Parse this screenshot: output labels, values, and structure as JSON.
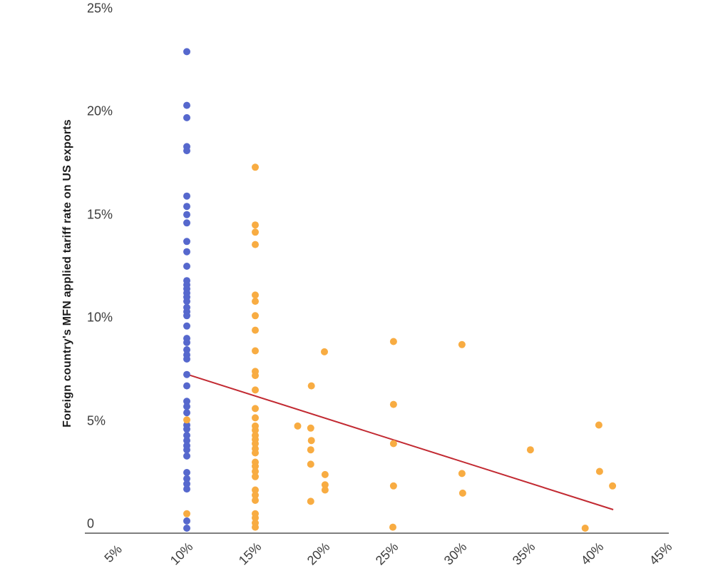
{
  "page": {
    "background_color": "#ffffff"
  },
  "chart_data": {
    "type": "scatter",
    "title": "",
    "xlabel": "",
    "ylabel": "Foreign country's MFN applied tariff rate on US exports",
    "xlim": [
      2.5,
      45.5
    ],
    "ylim": [
      0,
      25.5
    ],
    "grid": false,
    "legend": "none",
    "x_ticks": [
      {
        "value": 5,
        "label": "5%"
      },
      {
        "value": 10,
        "label": "10%"
      },
      {
        "value": 15,
        "label": "15%"
      },
      {
        "value": 20,
        "label": "20%"
      },
      {
        "value": 25,
        "label": "25%"
      },
      {
        "value": 30,
        "label": "30%"
      },
      {
        "value": 35,
        "label": "35%"
      },
      {
        "value": 40,
        "label": "40%"
      },
      {
        "value": 45,
        "label": "45%"
      }
    ],
    "y_ticks": [
      {
        "value": 0,
        "label": "0"
      },
      {
        "value": 5,
        "label": "5%"
      },
      {
        "value": 10,
        "label": "10%"
      },
      {
        "value": 15,
        "label": "15%"
      },
      {
        "value": 20,
        "label": "20%"
      },
      {
        "value": 25,
        "label": "25%"
      }
    ],
    "series": [
      {
        "name": "blue-points",
        "color": "#5668CD",
        "points": [
          [
            10,
            23.1
          ],
          [
            10,
            20.5
          ],
          [
            10,
            19.9
          ],
          [
            10,
            18.5
          ],
          [
            10,
            18.3
          ],
          [
            10,
            16.1
          ],
          [
            10,
            15.6
          ],
          [
            10,
            15.2
          ],
          [
            10,
            14.8
          ],
          [
            10,
            13.9
          ],
          [
            10,
            13.4
          ],
          [
            10,
            12.7
          ],
          [
            10,
            12.0
          ],
          [
            10,
            11.8
          ],
          [
            10,
            11.6
          ],
          [
            10,
            11.4
          ],
          [
            10,
            11.2
          ],
          [
            10,
            11.0
          ],
          [
            10,
            10.7
          ],
          [
            10,
            10.5
          ],
          [
            10,
            10.3
          ],
          [
            10,
            9.8
          ],
          [
            10,
            9.2
          ],
          [
            10,
            9.0
          ],
          [
            10,
            8.65
          ],
          [
            10,
            8.4
          ],
          [
            10,
            8.2
          ],
          [
            10,
            7.45
          ],
          [
            10,
            6.9
          ],
          [
            10,
            6.15
          ],
          [
            10,
            5.9
          ],
          [
            10,
            5.6
          ],
          [
            10,
            5.0
          ],
          [
            10,
            4.8
          ],
          [
            10,
            4.5
          ],
          [
            10,
            4.25
          ],
          [
            10,
            4.0
          ],
          [
            10,
            3.8
          ],
          [
            10,
            3.5
          ],
          [
            10,
            2.7
          ],
          [
            10,
            2.4
          ],
          [
            10,
            2.15
          ],
          [
            10,
            1.9
          ],
          [
            10,
            0.35
          ],
          [
            10,
            0.0
          ]
        ]
      },
      {
        "name": "orange-points",
        "color": "#F8AC42",
        "points": [
          [
            10,
            5.25
          ],
          [
            10,
            0.7
          ],
          [
            15,
            17.5
          ],
          [
            15,
            14.7
          ],
          [
            15,
            14.35
          ],
          [
            15,
            13.75
          ],
          [
            15,
            11.3
          ],
          [
            15,
            11.0
          ],
          [
            15,
            10.3
          ],
          [
            15,
            9.6
          ],
          [
            15,
            8.6
          ],
          [
            15,
            7.6
          ],
          [
            15,
            7.4
          ],
          [
            15,
            6.7
          ],
          [
            15,
            5.8
          ],
          [
            15,
            5.35
          ],
          [
            15,
            4.95
          ],
          [
            15,
            4.75
          ],
          [
            15,
            4.5
          ],
          [
            15,
            4.3
          ],
          [
            15,
            4.1
          ],
          [
            15,
            3.85
          ],
          [
            15,
            3.65
          ],
          [
            15,
            3.2
          ],
          [
            15,
            3.0
          ],
          [
            15,
            2.75
          ],
          [
            15,
            2.5
          ],
          [
            15,
            1.85
          ],
          [
            15,
            1.6
          ],
          [
            15,
            1.35
          ],
          [
            15,
            0.7
          ],
          [
            15,
            0.5
          ],
          [
            15,
            0.25
          ],
          [
            15,
            0.05
          ],
          [
            18.1,
            4.95
          ],
          [
            19.05,
            4.85
          ],
          [
            19.1,
            4.25
          ],
          [
            19.05,
            3.8
          ],
          [
            19.05,
            3.1
          ],
          [
            19.1,
            6.9
          ],
          [
            19.05,
            1.3
          ],
          [
            20.05,
            8.55
          ],
          [
            20.1,
            2.6
          ],
          [
            20.1,
            2.1
          ],
          [
            20.1,
            1.85
          ],
          [
            25.1,
            9.05
          ],
          [
            25.1,
            6.0
          ],
          [
            25.1,
            4.1
          ],
          [
            25.1,
            2.05
          ],
          [
            25.05,
            0.05
          ],
          [
            30.1,
            8.9
          ],
          [
            30.1,
            2.65
          ],
          [
            30.15,
            1.7
          ],
          [
            35.1,
            3.8
          ],
          [
            39.1,
            0.0
          ],
          [
            40.1,
            5.0
          ],
          [
            40.15,
            2.75
          ],
          [
            41.1,
            2.05
          ]
        ]
      }
    ],
    "trend_line": {
      "name": "fitted-trend-line",
      "color": "#C22A32",
      "x1": 10.1,
      "y1": 7.44,
      "x2": 41.15,
      "y2": 0.9
    },
    "axis_line_color": "#7f7f7f",
    "tick_label_color": "#3d3d3d"
  }
}
